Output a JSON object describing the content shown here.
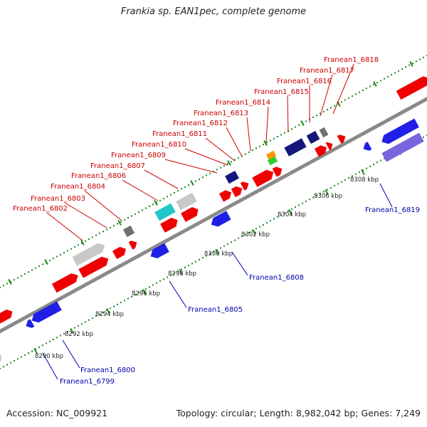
{
  "title": "Frankia sp. EAN1pec, complete genome",
  "footer": {
    "accession": "Accession: NC_009921",
    "topology": "Topology: circular; Length: 8,982,042 bp; Genes: 7,249"
  },
  "colors": {
    "backbone": "#8a8a8a",
    "tick": "#1f8a1f",
    "fwd_label": "#cc0000",
    "rev_label": "#0000aa",
    "red": "#ee0000",
    "blue": "#1f1fe6",
    "grey": "#c8c8c8",
    "dgrey": "#707070",
    "cyan": "#22c8c8",
    "navy": "#16167a",
    "orange": "#ff9a00",
    "green": "#33cc33",
    "purple": "#7766dd"
  },
  "scale_labels": [
    "8290 kbp",
    "8292 kbp",
    "8294 kbp",
    "8296 kbp",
    "8298 kbp",
    "8300 kbp",
    "8302 kbp",
    "8304 kbp",
    "8306 kbp",
    "8308 kbp"
  ],
  "fwd_labels": [
    "Franean1_6802",
    "Franean1_6803",
    "Franean1_6804",
    "Franean1_6806",
    "Franean1_6807",
    "Franean1_6809",
    "Franean1_6810",
    "Franean1_6811",
    "Franean1_6812",
    "Franean1_6813",
    "Franean1_6814",
    "Franean1_6815",
    "Franean1_6816",
    "Franean1_6817",
    "Franean1_6818"
  ],
  "rev_labels": [
    "Franean1_6799",
    "Franean1_6800",
    "Franean1_6805",
    "Franean1_6808",
    "Franean1_6819"
  ]
}
